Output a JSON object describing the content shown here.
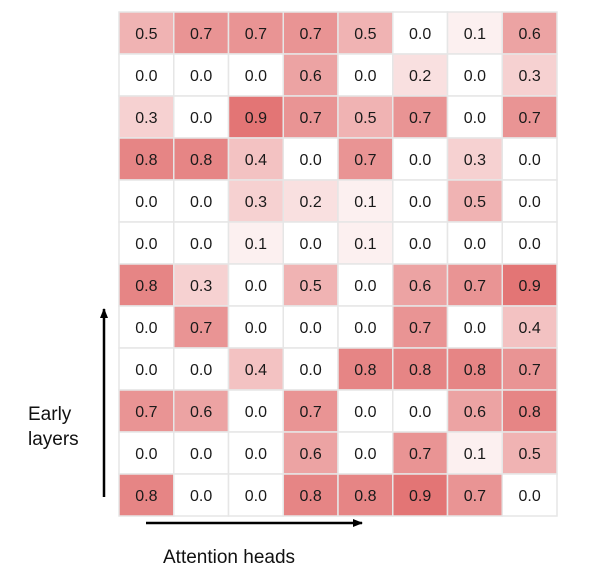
{
  "chart_data": {
    "type": "heatmap",
    "xlabel": "Attention heads",
    "ylabel_lines": [
      "Early",
      "layers"
    ],
    "color_low": "#ffffff",
    "color_high": "#e06666",
    "grid_color": "#e6e6e6",
    "vmin": 0.0,
    "vmax": 1.0,
    "matrix": [
      [
        "0.5",
        "0.7",
        "0.7",
        "0.7",
        "0.5",
        "0.0",
        "0.1",
        "0.6"
      ],
      [
        "0.0",
        "0.0",
        "0.0",
        "0.6",
        "0.0",
        "0.2",
        "0.0",
        "0.3"
      ],
      [
        "0.3",
        "0.0",
        "0.9",
        "0.7",
        "0.5",
        "0.7",
        "0.0",
        "0.7"
      ],
      [
        "0.8",
        "0.8",
        "0.4",
        "0.0",
        "0.7",
        "0.0",
        "0.3",
        "0.0"
      ],
      [
        "0.0",
        "0.0",
        "0.3",
        "0.2",
        "0.1",
        "0.0",
        "0.5",
        "0.0"
      ],
      [
        "0.0",
        "0.0",
        "0.1",
        "0.0",
        "0.1",
        "0.0",
        "0.0",
        "0.0"
      ],
      [
        "0.8",
        "0.3",
        "0.0",
        "0.5",
        "0.0",
        "0.6",
        "0.7",
        "0.9"
      ],
      [
        "0.0",
        "0.7",
        "0.0",
        "0.0",
        "0.0",
        "0.7",
        "0.0",
        "0.4"
      ],
      [
        "0.0",
        "0.0",
        "0.4",
        "0.0",
        "0.8",
        "0.8",
        "0.8",
        "0.7"
      ],
      [
        "0.7",
        "0.6",
        "0.0",
        "0.7",
        "0.0",
        "0.0",
        "0.6",
        "0.8"
      ],
      [
        "0.0",
        "0.0",
        "0.0",
        "0.6",
        "0.0",
        "0.7",
        "0.1",
        "0.5"
      ],
      [
        "0.8",
        "0.0",
        "0.0",
        "0.8",
        "0.8",
        "0.9",
        "0.7",
        "0.0"
      ]
    ]
  }
}
